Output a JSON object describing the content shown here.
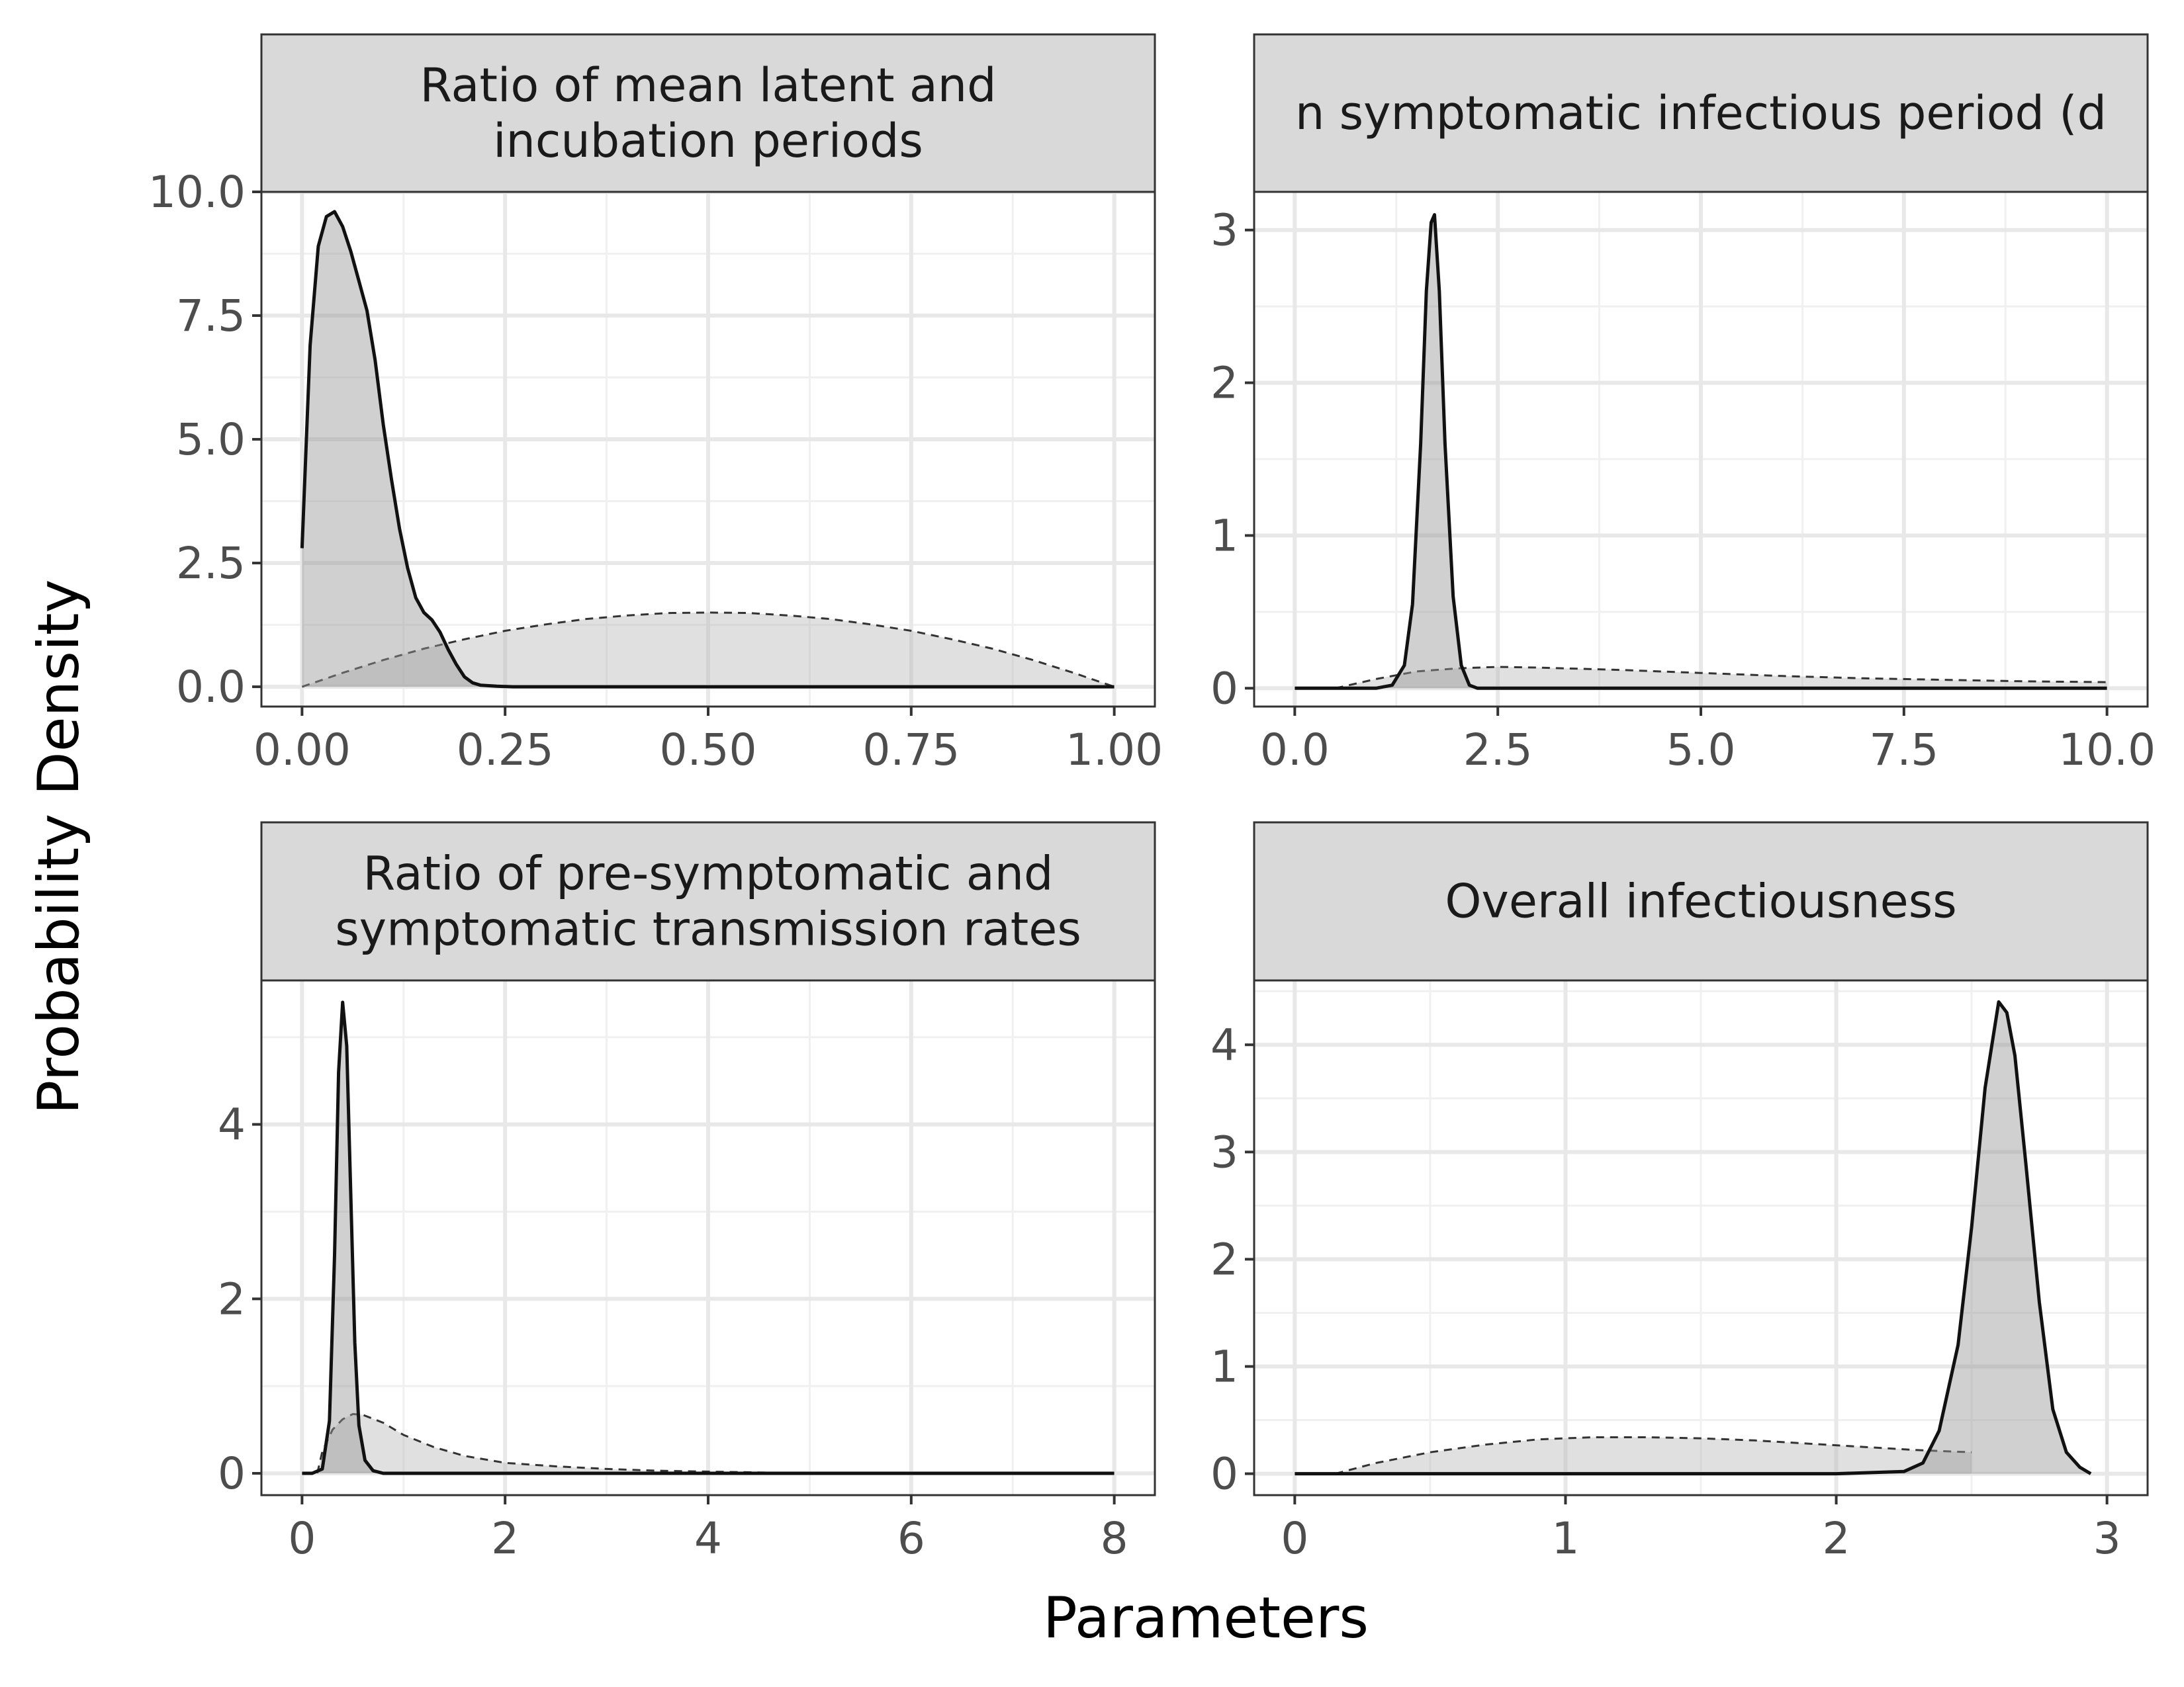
{
  "figure": {
    "xlabel": "Parameters",
    "ylabel": "Probability Density"
  },
  "chart_data": [
    {
      "type": "area",
      "panel": "top-left",
      "title_lines": [
        "Ratio of mean latent and",
        "incubation periods"
      ],
      "xlim": [
        -0.05,
        1.05
      ],
      "ylim": [
        -0.4,
        10.0
      ],
      "x_ticks": [
        0.0,
        0.25,
        0.5,
        0.75,
        1.0
      ],
      "x_tick_labels": [
        "0.00",
        "0.25",
        "0.50",
        "0.75",
        "1.00"
      ],
      "y_ticks": [
        0.0,
        2.5,
        5.0,
        7.5,
        10.0
      ],
      "y_tick_labels": [
        "0.0",
        "2.5",
        "5.0",
        "7.5",
        "10.0"
      ],
      "grid": true,
      "series": [
        {
          "role": "posterior",
          "line_style": "solid",
          "x": [
            0.0,
            0.01,
            0.02,
            0.03,
            0.04,
            0.05,
            0.06,
            0.07,
            0.08,
            0.09,
            0.1,
            0.11,
            0.12,
            0.13,
            0.14,
            0.15,
            0.16,
            0.17,
            0.18,
            0.19,
            0.2,
            0.21,
            0.22,
            0.24,
            0.26,
            0.3,
            0.4,
            0.6,
            0.8,
            1.0
          ],
          "y": [
            2.8,
            6.9,
            8.9,
            9.5,
            9.6,
            9.3,
            8.8,
            8.2,
            7.6,
            6.6,
            5.3,
            4.2,
            3.2,
            2.4,
            1.8,
            1.5,
            1.35,
            1.1,
            0.75,
            0.45,
            0.2,
            0.08,
            0.03,
            0.01,
            0.0,
            0.0,
            0.0,
            0.0,
            0.0,
            0.0
          ]
        },
        {
          "role": "prior",
          "line_style": "dashed",
          "x": [
            0.0,
            0.05,
            0.1,
            0.15,
            0.2,
            0.25,
            0.3,
            0.35,
            0.4,
            0.45,
            0.5,
            0.55,
            0.6,
            0.65,
            0.7,
            0.75,
            0.8,
            0.85,
            0.9,
            0.95,
            1.0
          ],
          "y": [
            0.0,
            0.28,
            0.54,
            0.77,
            0.96,
            1.13,
            1.26,
            1.37,
            1.44,
            1.49,
            1.5,
            1.49,
            1.44,
            1.37,
            1.26,
            1.13,
            0.96,
            0.77,
            0.54,
            0.28,
            0.0
          ]
        }
      ]
    },
    {
      "type": "area",
      "panel": "top-right",
      "title_lines": [
        "n symptomatic infectious period (d"
      ],
      "xlim": [
        -0.5,
        10.5
      ],
      "ylim": [
        -0.12,
        3.25
      ],
      "x_ticks": [
        0.0,
        2.5,
        5.0,
        7.5,
        10.0
      ],
      "x_tick_labels": [
        "0.0",
        "2.5",
        "5.0",
        "7.5",
        "10.0"
      ],
      "y_ticks": [
        0,
        1,
        2,
        3
      ],
      "y_tick_labels": [
        "0",
        "1",
        "2",
        "3"
      ],
      "grid": true,
      "series": [
        {
          "role": "posterior",
          "line_style": "solid",
          "x": [
            0.0,
            1.0,
            1.2,
            1.35,
            1.45,
            1.55,
            1.62,
            1.68,
            1.72,
            1.78,
            1.85,
            1.95,
            2.05,
            2.15,
            2.25,
            3.0,
            5.0,
            10.0
          ],
          "y": [
            0.0,
            0.0,
            0.02,
            0.15,
            0.55,
            1.6,
            2.6,
            3.05,
            3.1,
            2.6,
            1.6,
            0.6,
            0.15,
            0.02,
            0.0,
            0.0,
            0.0,
            0.0
          ]
        },
        {
          "role": "prior",
          "line_style": "dashed",
          "x": [
            0.5,
            1.0,
            1.5,
            2.0,
            2.5,
            3.0,
            4.0,
            5.0,
            6.0,
            7.0,
            8.0,
            9.0,
            10.0
          ],
          "y": [
            0.0,
            0.06,
            0.11,
            0.13,
            0.14,
            0.135,
            0.12,
            0.1,
            0.08,
            0.065,
            0.055,
            0.045,
            0.04
          ]
        }
      ]
    },
    {
      "type": "area",
      "panel": "bottom-left",
      "title_lines": [
        "Ratio of pre-symptomatic and",
        "symptomatic transmission rates"
      ],
      "xlim": [
        -0.4,
        8.4
      ],
      "ylim": [
        -0.25,
        5.65
      ],
      "x_ticks": [
        0,
        2,
        4,
        6,
        8
      ],
      "x_tick_labels": [
        "0",
        "2",
        "4",
        "6",
        "8"
      ],
      "y_ticks": [
        0,
        2,
        4
      ],
      "y_tick_labels": [
        "0",
        "2",
        "4"
      ],
      "grid": true,
      "series": [
        {
          "role": "posterior",
          "line_style": "solid",
          "x": [
            0.0,
            0.1,
            0.2,
            0.27,
            0.32,
            0.36,
            0.4,
            0.44,
            0.48,
            0.52,
            0.56,
            0.62,
            0.7,
            0.8,
            1.0,
            2.0,
            4.0,
            8.0
          ],
          "y": [
            0.0,
            0.0,
            0.05,
            0.6,
            2.5,
            4.6,
            5.4,
            4.9,
            3.2,
            1.5,
            0.55,
            0.15,
            0.03,
            0.0,
            0.0,
            0.0,
            0.0,
            0.0
          ]
        },
        {
          "role": "prior",
          "line_style": "dashed",
          "x": [
            0.15,
            0.2,
            0.3,
            0.4,
            0.5,
            0.6,
            0.8,
            1.0,
            1.3,
            1.6,
            2.0,
            2.5,
            3.0,
            3.5,
            4.0,
            4.5,
            5.0
          ],
          "y": [
            0.0,
            0.25,
            0.5,
            0.62,
            0.68,
            0.67,
            0.58,
            0.44,
            0.3,
            0.2,
            0.12,
            0.08,
            0.05,
            0.03,
            0.02,
            0.01,
            0.0
          ]
        }
      ]
    },
    {
      "type": "area",
      "panel": "bottom-right",
      "title_lines": [
        "Overall infectiousness"
      ],
      "xlim": [
        -0.15,
        3.15
      ],
      "ylim": [
        -0.2,
        4.6
      ],
      "x_ticks": [
        0,
        1,
        2,
        3
      ],
      "x_tick_labels": [
        "0",
        "1",
        "2",
        "3"
      ],
      "y_ticks": [
        0,
        1,
        2,
        3,
        4
      ],
      "y_tick_labels": [
        "0",
        "1",
        "2",
        "3",
        "4"
      ],
      "grid": true,
      "series": [
        {
          "role": "posterior",
          "line_style": "solid",
          "x": [
            0.0,
            2.0,
            2.25,
            2.32,
            2.38,
            2.45,
            2.5,
            2.55,
            2.6,
            2.63,
            2.66,
            2.7,
            2.75,
            2.8,
            2.85,
            2.9,
            2.94
          ],
          "y": [
            0.0,
            0.0,
            0.02,
            0.1,
            0.4,
            1.2,
            2.3,
            3.6,
            4.4,
            4.3,
            3.9,
            2.9,
            1.6,
            0.6,
            0.2,
            0.06,
            0.0
          ]
        },
        {
          "role": "prior",
          "line_style": "dashed",
          "x": [
            0.15,
            0.3,
            0.5,
            0.7,
            0.9,
            1.1,
            1.3,
            1.5,
            1.7,
            1.9,
            2.1,
            2.3,
            2.5
          ],
          "y": [
            0.0,
            0.1,
            0.2,
            0.27,
            0.32,
            0.34,
            0.34,
            0.33,
            0.31,
            0.28,
            0.25,
            0.22,
            0.2
          ]
        }
      ]
    }
  ]
}
